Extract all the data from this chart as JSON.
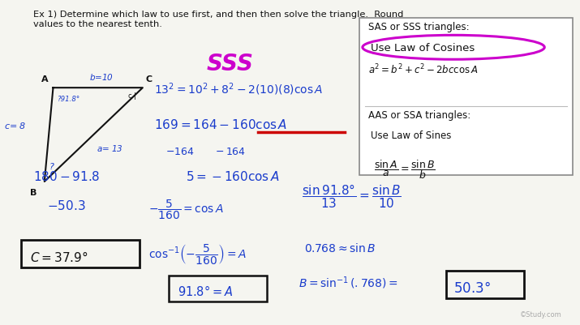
{
  "bg_color": "#f5f5f0",
  "title_text": "Ex 1) Determine which law to use first, and then then solve the triangle.  Round\nvalues to the nearest tenth.",
  "sss_label": "SSS",
  "box1_title": "SAS or SSS triangles:",
  "box1_line2": "Use Law of Cosines",
  "box1_formula": "$a^2 = b^2 + c^2 - 2bc\\cos A$",
  "box2_title": "AAS or SSA triangles:",
  "box2_line2": "Use Law of Sines",
  "box2_formula": "$\\frac{\\sin A}{a} = \\frac{\\sin B}{b}$",
  "blue": "#1a3ccc",
  "magenta": "#cc00cc",
  "red": "#cc0000",
  "dark": "#111111"
}
